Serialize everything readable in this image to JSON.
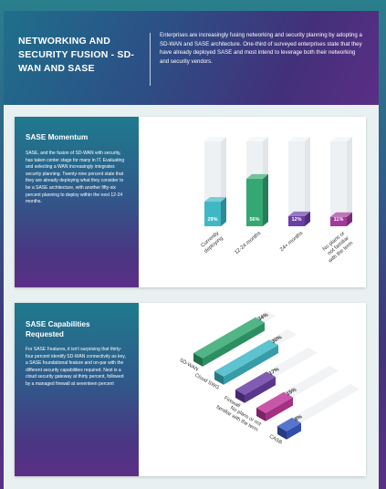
{
  "header": {
    "title": "NETWORKING AND SECURITY FUSION - SD-WAN AND SASE",
    "text": "Enterprises are increasingly fusing networking and security planning by adopting a SD-WAN and SASE architecture. One-third of surveyed enterprises state that they have already deployed SASE and most intend to leverage both their networking and security vendors."
  },
  "momentum": {
    "title": "SASE Momentum",
    "text": "SASE, and the fusion of SD-WAN with security, has taken center stage for many in IT. Evaluating and selecting a WAN increasingly integrates security planning. Twenty-nine percent state that they are already deploying what they consider to be a SASE architecture, with another fifty-six percent planning to deploy within the next 12-24 months."
  },
  "capabilities": {
    "title": "SASE Capabilities Requested",
    "text": "For SASE Features, it isn't surprising that thirty-four percent identify SD-WAN connectivity as key, a SASE foundational feature and on-par with the different security capabilities required. Next is a cloud security gateway at thirty percent, followed by a managed firewall at seventeen percent"
  },
  "colors": {
    "teal": "#3fb8c6",
    "green": "#34a872",
    "purple": "#6b3fa6",
    "magenta": "#a23a9c",
    "blue": "#3a5cc6"
  },
  "chart_data": [
    {
      "type": "bar",
      "title": "SASE Momentum",
      "categories": [
        "Currently deploying",
        "12-24 months",
        "24+ months",
        "No plans or not familiar with the term"
      ],
      "values": [
        29,
        56,
        12,
        11
      ],
      "value_labels": [
        "29%",
        "56%",
        "12%",
        "11%"
      ],
      "ylim": [
        0,
        100
      ],
      "colors": [
        "#3fb8c6",
        "#34a872",
        "#6b3fa6",
        "#a23a9c"
      ]
    },
    {
      "type": "bar",
      "title": "SASE Capabilities Requested",
      "categories": [
        "SD-WAN",
        "Cloud SWG",
        "Firewall",
        "No plans or not familiar with the term",
        "CASB"
      ],
      "values": [
        34,
        30,
        17,
        15,
        8
      ],
      "value_labels": [
        "34%",
        "30%",
        "17%",
        "15%",
        "8%"
      ],
      "colors": [
        "#34a872",
        "#3fb8c6",
        "#6b3fa6",
        "#c0399a",
        "#3a5cc6"
      ]
    }
  ]
}
